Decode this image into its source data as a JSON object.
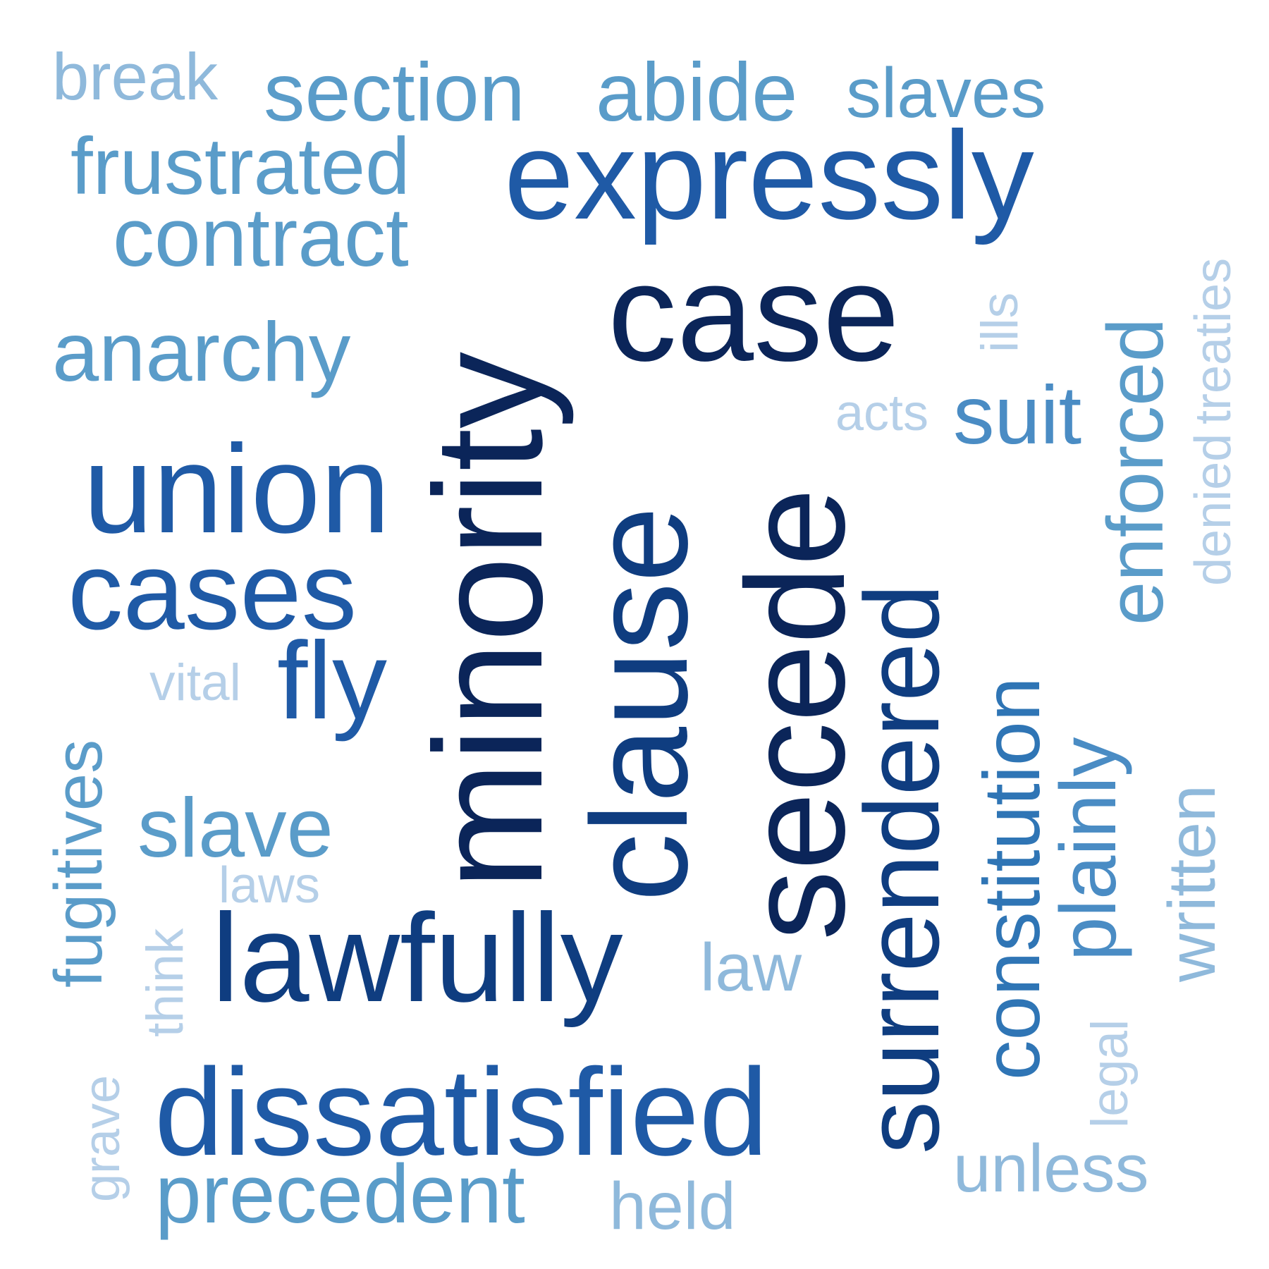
{
  "words": [
    {
      "text": "break",
      "color": "#8fb9db",
      "vertical": false
    },
    {
      "text": "section",
      "color": "#5a9cc9",
      "vertical": false
    },
    {
      "text": "abide",
      "color": "#5a9cc9",
      "vertical": false
    },
    {
      "text": "slaves",
      "color": "#5a9cc9",
      "vertical": false
    },
    {
      "text": "frustrated",
      "color": "#5a9cc9",
      "vertical": false
    },
    {
      "text": "expressly",
      "color": "#1f5aa6",
      "vertical": false
    },
    {
      "text": "contract",
      "color": "#5a9cc9",
      "vertical": false
    },
    {
      "text": "anarchy",
      "color": "#5a9cc9",
      "vertical": false
    },
    {
      "text": "case",
      "color": "#0b2559",
      "vertical": false
    },
    {
      "text": "minority",
      "color": "#0b2559",
      "vertical": true
    },
    {
      "text": "ills",
      "color": "#b5cfe8",
      "vertical": true
    },
    {
      "text": "treaties",
      "color": "#b5cfe8",
      "vertical": true
    },
    {
      "text": "enforced",
      "color": "#5a9cc9",
      "vertical": true
    },
    {
      "text": "denied",
      "color": "#b5cfe8",
      "vertical": true
    },
    {
      "text": "acts",
      "color": "#b5cfe8",
      "vertical": false
    },
    {
      "text": "suit",
      "color": "#4a8cc4",
      "vertical": false
    },
    {
      "text": "union",
      "color": "#1f5aa6",
      "vertical": false
    },
    {
      "text": "cases",
      "color": "#1f5aa6",
      "vertical": false
    },
    {
      "text": "clause",
      "color": "#0f3d80",
      "vertical": true
    },
    {
      "text": "secede",
      "color": "#0b2559",
      "vertical": true
    },
    {
      "text": "surrendered",
      "color": "#0f3d80",
      "vertical": true
    },
    {
      "text": "constitution",
      "color": "#2f75b5",
      "vertical": true
    },
    {
      "text": "plainly",
      "color": "#4a8cc4",
      "vertical": true
    },
    {
      "text": "written",
      "color": "#8fb9db",
      "vertical": true
    },
    {
      "text": "fugitives",
      "color": "#5a9cc9",
      "vertical": true
    },
    {
      "text": "vital",
      "color": "#b5cfe8",
      "vertical": false
    },
    {
      "text": "fly",
      "color": "#1f5aa6",
      "vertical": false
    },
    {
      "text": "slave",
      "color": "#5a9cc9",
      "vertical": false
    },
    {
      "text": "laws",
      "color": "#b5cfe8",
      "vertical": false
    },
    {
      "text": "think",
      "color": "#b5cfe8",
      "vertical": true
    },
    {
      "text": "lawfully",
      "color": "#0f3d80",
      "vertical": false
    },
    {
      "text": "law",
      "color": "#8fb9db",
      "vertical": false
    },
    {
      "text": "legal",
      "color": "#b5cfe8",
      "vertical": true
    },
    {
      "text": "grave",
      "color": "#b5cfe8",
      "vertical": true
    },
    {
      "text": "dissatisfied",
      "color": "#1f5aa6",
      "vertical": false
    },
    {
      "text": "unless",
      "color": "#8fb9db",
      "vertical": false
    },
    {
      "text": "precedent",
      "color": "#5a9cc9",
      "vertical": false
    },
    {
      "text": "held",
      "color": "#8fb9db",
      "vertical": false
    }
  ]
}
